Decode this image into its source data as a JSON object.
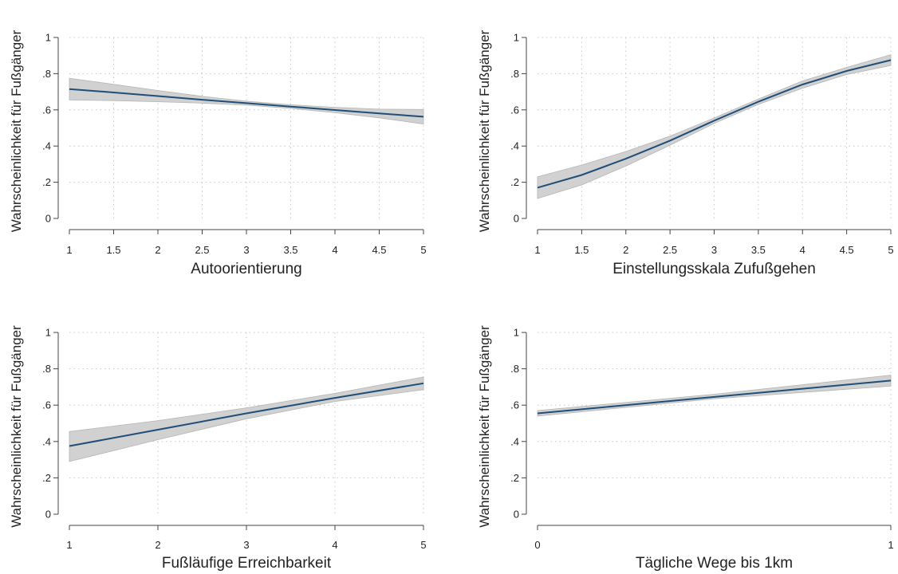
{
  "chart_data": [
    {
      "type": "line",
      "xlabel": "Autoorientierung",
      "ylabel": "Wahrscheinlichkeit für Fußgänger",
      "xlim": [
        1,
        5
      ],
      "ylim": [
        0,
        1
      ],
      "xticks": [
        1,
        1.5,
        2,
        2.5,
        3,
        3.5,
        4,
        4.5,
        5
      ],
      "xtick_labels": [
        "1",
        "1.5",
        "2",
        "2.5",
        "3",
        "3.5",
        "4",
        "4.5",
        "5"
      ],
      "yticks": [
        0,
        0.2,
        0.4,
        0.6,
        0.8,
        1
      ],
      "ytick_labels": [
        "0",
        ".2",
        ".4",
        ".6",
        ".8",
        "1"
      ],
      "grid": true,
      "series": [
        {
          "x": [
            1,
            1.5,
            2,
            2.5,
            3,
            3.5,
            4,
            4.5,
            5
          ],
          "y": [
            0.715,
            0.696,
            0.676,
            0.656,
            0.637,
            0.618,
            0.599,
            0.58,
            0.562
          ],
          "ci_low": [
            0.655,
            0.651,
            0.645,
            0.637,
            0.626,
            0.608,
            0.584,
            0.556,
            0.522
          ],
          "ci_high": [
            0.775,
            0.741,
            0.707,
            0.675,
            0.648,
            0.628,
            0.614,
            0.604,
            0.602
          ],
          "color": "#1f4e79",
          "band_color": "#cccccc"
        }
      ]
    },
    {
      "type": "line",
      "xlabel": "Einstellungsskala Zufußgehen",
      "ylabel": "Wahrscheinlichkeit für Fußgänger",
      "xlim": [
        1,
        5
      ],
      "ylim": [
        0,
        1
      ],
      "xticks": [
        1,
        1.5,
        2,
        2.5,
        3,
        3.5,
        4,
        4.5,
        5
      ],
      "xtick_labels": [
        "1",
        "1.5",
        "2",
        "2.5",
        "3",
        "3.5",
        "4",
        "4.5",
        "5"
      ],
      "yticks": [
        0,
        0.2,
        0.4,
        0.6,
        0.8,
        1
      ],
      "ytick_labels": [
        "0",
        ".2",
        ".4",
        ".6",
        ".8",
        "1"
      ],
      "grid": true,
      "series": [
        {
          "x": [
            1,
            1.5,
            2,
            2.5,
            3,
            3.5,
            4,
            4.5,
            5
          ],
          "y": [
            0.17,
            0.24,
            0.33,
            0.43,
            0.54,
            0.645,
            0.74,
            0.815,
            0.875
          ],
          "ci_low": [
            0.11,
            0.185,
            0.29,
            0.405,
            0.525,
            0.63,
            0.72,
            0.795,
            0.845
          ],
          "ci_high": [
            0.23,
            0.295,
            0.37,
            0.455,
            0.555,
            0.66,
            0.76,
            0.835,
            0.905
          ],
          "color": "#1f4e79",
          "band_color": "#cccccc"
        }
      ]
    },
    {
      "type": "line",
      "xlabel": "Fußläufige Erreichbarkeit",
      "ylabel": "Wahrscheinlichkeit für Fußgänger",
      "xlim": [
        1,
        5
      ],
      "ylim": [
        0,
        1
      ],
      "xticks": [
        1,
        2,
        3,
        4,
        5
      ],
      "xtick_labels": [
        "1",
        "2",
        "3",
        "4",
        "5"
      ],
      "yticks": [
        0,
        0.2,
        0.4,
        0.6,
        0.8,
        1
      ],
      "ytick_labels": [
        "0",
        ".2",
        ".4",
        ".6",
        ".8",
        "1"
      ],
      "grid": true,
      "series": [
        {
          "x": [
            1,
            2,
            3,
            4,
            5
          ],
          "y": [
            0.375,
            0.465,
            0.555,
            0.64,
            0.72
          ],
          "ci_low": [
            0.29,
            0.41,
            0.525,
            0.62,
            0.685
          ],
          "ci_high": [
            0.455,
            0.515,
            0.585,
            0.665,
            0.755
          ],
          "color": "#1f4e79",
          "band_color": "#cccccc"
        }
      ]
    },
    {
      "type": "line",
      "xlabel": "Tägliche Wege bis 1km",
      "ylabel": "Wahrscheinlichkeit für Fußgänger",
      "xlim": [
        0,
        1
      ],
      "ylim": [
        0,
        1
      ],
      "xticks": [
        0,
        1
      ],
      "xtick_labels": [
        "0",
        "1"
      ],
      "yticks": [
        0,
        0.2,
        0.4,
        0.6,
        0.8,
        1
      ],
      "ytick_labels": [
        "0",
        ".2",
        ".4",
        ".6",
        ".8",
        "1"
      ],
      "grid": true,
      "series": [
        {
          "x": [
            0,
            0.5,
            1
          ],
          "y": [
            0.555,
            0.645,
            0.735
          ],
          "ci_low": [
            0.54,
            0.635,
            0.705
          ],
          "ci_high": [
            0.57,
            0.66,
            0.765
          ],
          "color": "#1f4e79",
          "band_color": "#cccccc"
        }
      ]
    }
  ]
}
